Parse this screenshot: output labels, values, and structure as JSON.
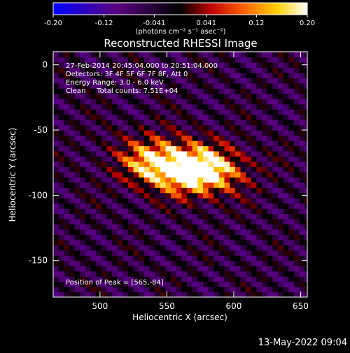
{
  "chart_data": {
    "type": "heatmap",
    "title": "Reconstructed RHESSI Image",
    "xlabel": "Heliocentric X (arcsec)",
    "ylabel": "Heliocentric Y (arcsec)",
    "xlim": [
      465,
      655
    ],
    "ylim": [
      -178,
      10
    ],
    "xticks": [
      500,
      550,
      600,
      650
    ],
    "yticks": [
      0,
      -50,
      -100,
      -150
    ],
    "colorbar": {
      "min": -0.2,
      "max": 0.2,
      "ticks": [
        "-0.20",
        "-0.12",
        "-0.041",
        "0.041",
        "0.12",
        "0.20"
      ],
      "unit": "(photons cm⁻² s⁻¹ asec⁻²)"
    },
    "annotations": [
      "27-Feb-2014 20:45:04.000 to 20:51:04.000",
      "Detectors: 3F 4F 5F 6F 7F 8F, Att 0",
      "Energy Range: 3.0 - 6.0 keV",
      "Clean     Total counts: 7.51E+04"
    ],
    "peak_label": "Position of Peak = [565,-84]",
    "peak": [
      565,
      -84
    ],
    "sources": [
      {
        "x": 565,
        "y": -82,
        "value": 0.2
      },
      {
        "x": 540,
        "y": -75,
        "value": 0.19
      },
      {
        "x": 583,
        "y": -80,
        "value": 0.18
      }
    ]
  },
  "footer": {
    "timestamp": "13-May-2022 09:04"
  },
  "colors": {
    "background": "#000000",
    "text": "#ffffff",
    "colormap": [
      "#0000ff",
      "#5a0080",
      "#000000",
      "#c00000",
      "#ff6000",
      "#ffd000",
      "#ffffff"
    ]
  }
}
